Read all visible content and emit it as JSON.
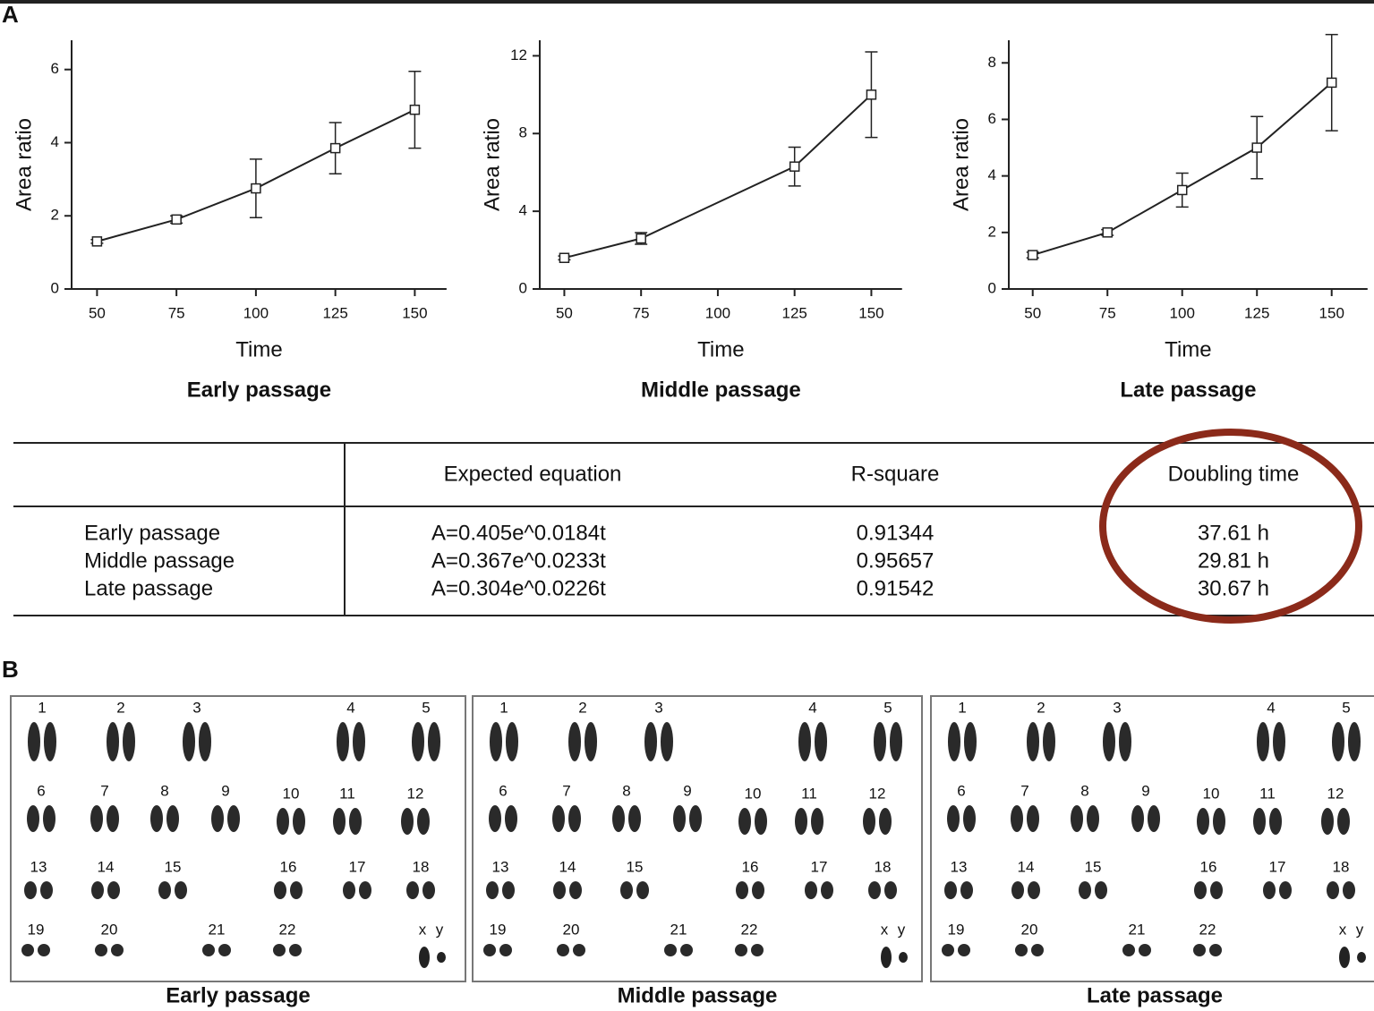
{
  "panel_labels": [
    "A",
    "B"
  ],
  "chart_data": [
    {
      "type": "line",
      "title": "Early passage",
      "x_label": "Time",
      "y_label": "Area ratio",
      "x": [
        50,
        75,
        100,
        125,
        150
      ],
      "series": [
        {
          "color": "#222222",
          "values": [
            1.3,
            1.9,
            2.75,
            3.85,
            4.9
          ],
          "errors": [
            0.05,
            0.1,
            0.8,
            0.7,
            1.05
          ]
        }
      ],
      "xlim": [
        42,
        160
      ],
      "xticks": [
        50,
        75,
        100,
        125,
        150
      ],
      "ylim": [
        0,
        6.8
      ],
      "yticks": [
        0,
        2,
        4,
        6
      ]
    },
    {
      "type": "line",
      "title": "Middle passage",
      "x_label": "Time",
      "y_label": "Area ratio",
      "x": [
        50,
        75,
        125,
        150
      ],
      "series": [
        {
          "color": "#222222",
          "values": [
            1.6,
            2.6,
            6.3,
            10.0
          ],
          "errors": [
            0.1,
            0.3,
            1.0,
            2.2
          ]
        }
      ],
      "xlim": [
        42,
        160
      ],
      "xticks": [
        50,
        75,
        100,
        125,
        150
      ],
      "ylim": [
        0,
        12.8
      ],
      "yticks": [
        0,
        4,
        8,
        12
      ]
    },
    {
      "type": "line",
      "title": "Late passage",
      "x_label": "Time",
      "y_label": "Area ratio",
      "x": [
        50,
        75,
        100,
        125,
        150
      ],
      "series": [
        {
          "color": "#222222",
          "values": [
            1.2,
            2.0,
            3.5,
            5.0,
            7.3
          ],
          "errors": [
            0.1,
            0.1,
            0.6,
            1.1,
            1.7
          ]
        }
      ],
      "xlim": [
        42,
        162
      ],
      "xticks": [
        50,
        75,
        100,
        125,
        150
      ],
      "ylim": [
        0,
        8.8
      ],
      "yticks": [
        0,
        2,
        4,
        6,
        8
      ]
    }
  ],
  "table": {
    "headers": [
      "Expected equation",
      "R-square",
      "Doubling time"
    ],
    "rows": [
      [
        "Early passage",
        "A=0.405e^0.0184t",
        "0.91344",
        "37.61 h"
      ],
      [
        "Middle passage",
        "A=0.367e^0.0233t",
        "0.95657",
        "29.81 h"
      ],
      [
        "Late passage",
        "A=0.304e^0.0226t",
        "0.91542",
        "30.67 h"
      ]
    ]
  },
  "karyotypes": {
    "panels": [
      "Early passage",
      "Middle passage",
      "Late passage"
    ],
    "chromosomes": [
      "1",
      "2",
      "3",
      "4",
      "5",
      "6",
      "7",
      "8",
      "9",
      "10",
      "11",
      "12",
      "13",
      "14",
      "15",
      "16",
      "17",
      "18",
      "19",
      "20",
      "21",
      "22",
      "x",
      "y"
    ]
  }
}
